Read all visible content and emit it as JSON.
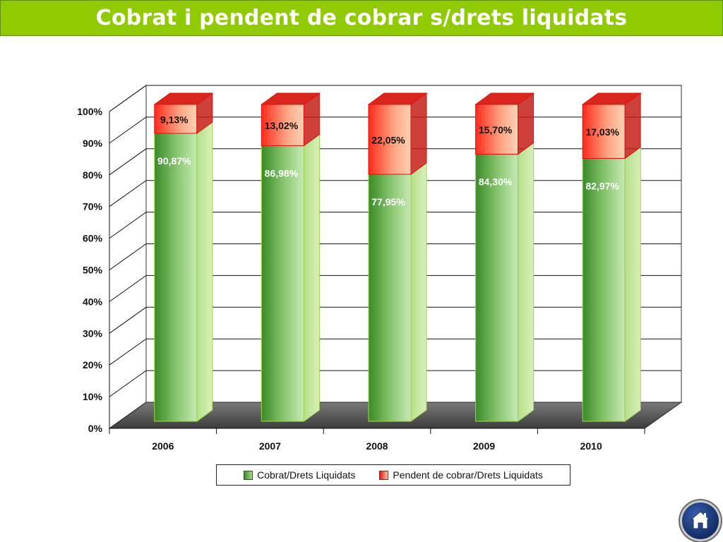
{
  "page": {
    "title": "Cobrat i pendent de cobrar s/drets liquidats"
  },
  "chart_data": {
    "type": "bar",
    "stacked": true,
    "categories": [
      "2006",
      "2007",
      "2008",
      "2009",
      "2010"
    ],
    "series": [
      {
        "name": "Cobrat/Drets Liquidats",
        "values": [
          90.87,
          86.98,
          77.95,
          84.3,
          82.97
        ],
        "labels": [
          "90,87%",
          "86,98%",
          "77,95%",
          "84,30%",
          "82,97%"
        ],
        "color": "#5aa83a"
      },
      {
        "name": "Pendent de cobrar/Drets Liquidats",
        "values": [
          9.13,
          13.02,
          22.05,
          15.7,
          17.03
        ],
        "labels": [
          "9,13%",
          "13,02%",
          "22,05%",
          "15,70%",
          "17,03%"
        ],
        "color": "#ff3b2a"
      }
    ],
    "yticks": [
      "0%",
      "10%",
      "20%",
      "30%",
      "40%",
      "50%",
      "60%",
      "70%",
      "80%",
      "90%",
      "100%"
    ],
    "ylim": [
      0,
      100
    ],
    "grid": true,
    "legend_position": "bottom",
    "three_d": true
  },
  "nav": {
    "home_icon": "home-icon"
  }
}
